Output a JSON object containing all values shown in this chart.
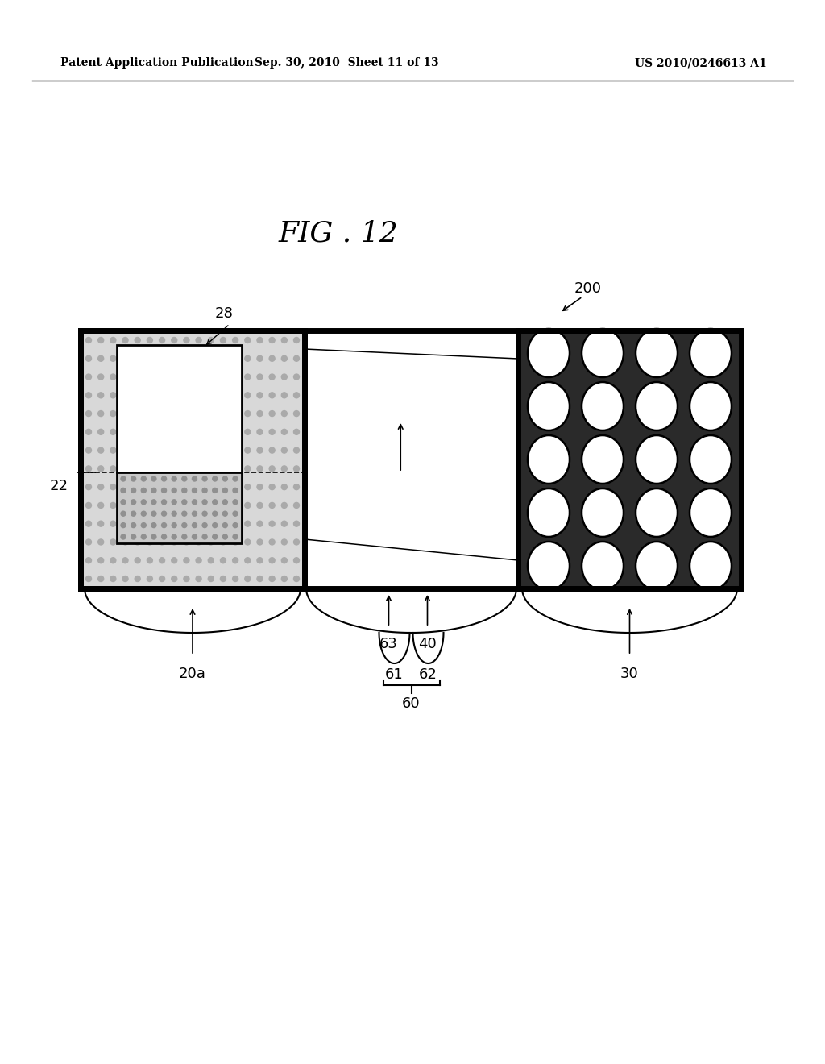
{
  "header_left": "Patent Application Publication",
  "header_mid": "Sep. 30, 2010  Sheet 11 of 13",
  "header_right": "US 2010/0246613 A1",
  "fig_title": "FIG . 12",
  "bg_color": "#ffffff",
  "label_200": "200",
  "label_28": "28",
  "label_22": "22",
  "label_20a": "20a",
  "label_63": "63",
  "label_40": "40",
  "label_30": "30",
  "label_61": "61",
  "label_62": "62",
  "label_60": "60"
}
